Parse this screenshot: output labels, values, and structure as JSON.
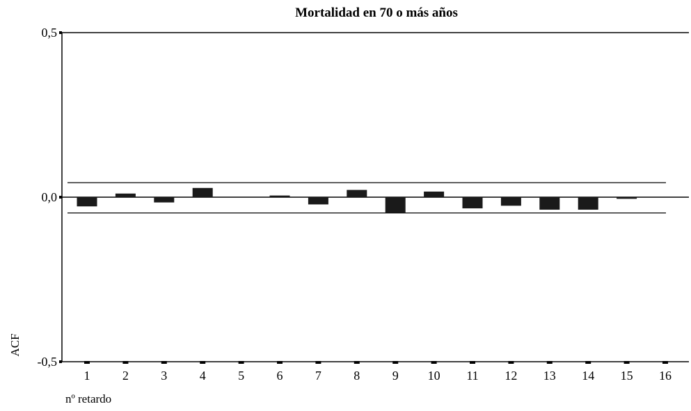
{
  "chart_data": {
    "type": "bar",
    "title": "Mortalidad en 70 o más años",
    "xlabel": "nº retardo",
    "ylabel": "ACF",
    "categories": [
      "1",
      "2",
      "3",
      "4",
      "5",
      "6",
      "7",
      "8",
      "9",
      "10",
      "11",
      "12",
      "13",
      "14",
      "15",
      "16"
    ],
    "values": [
      -0.028,
      0.011,
      -0.016,
      0.028,
      0.0,
      0.005,
      -0.022,
      0.022,
      -0.048,
      0.017,
      -0.034,
      -0.026,
      -0.038,
      -0.038,
      -0.005,
      0.0
    ],
    "ylim": [
      -0.5,
      0.5
    ],
    "yticks": [
      0.5,
      0.0,
      -0.5
    ],
    "ytick_labels": [
      "0,5",
      "0,0",
      "-0,5"
    ],
    "confidence_limits": [
      0.044,
      -0.048
    ],
    "grid": false,
    "colors": {
      "bar": "#1a1a1a",
      "axis": "#000000"
    }
  }
}
